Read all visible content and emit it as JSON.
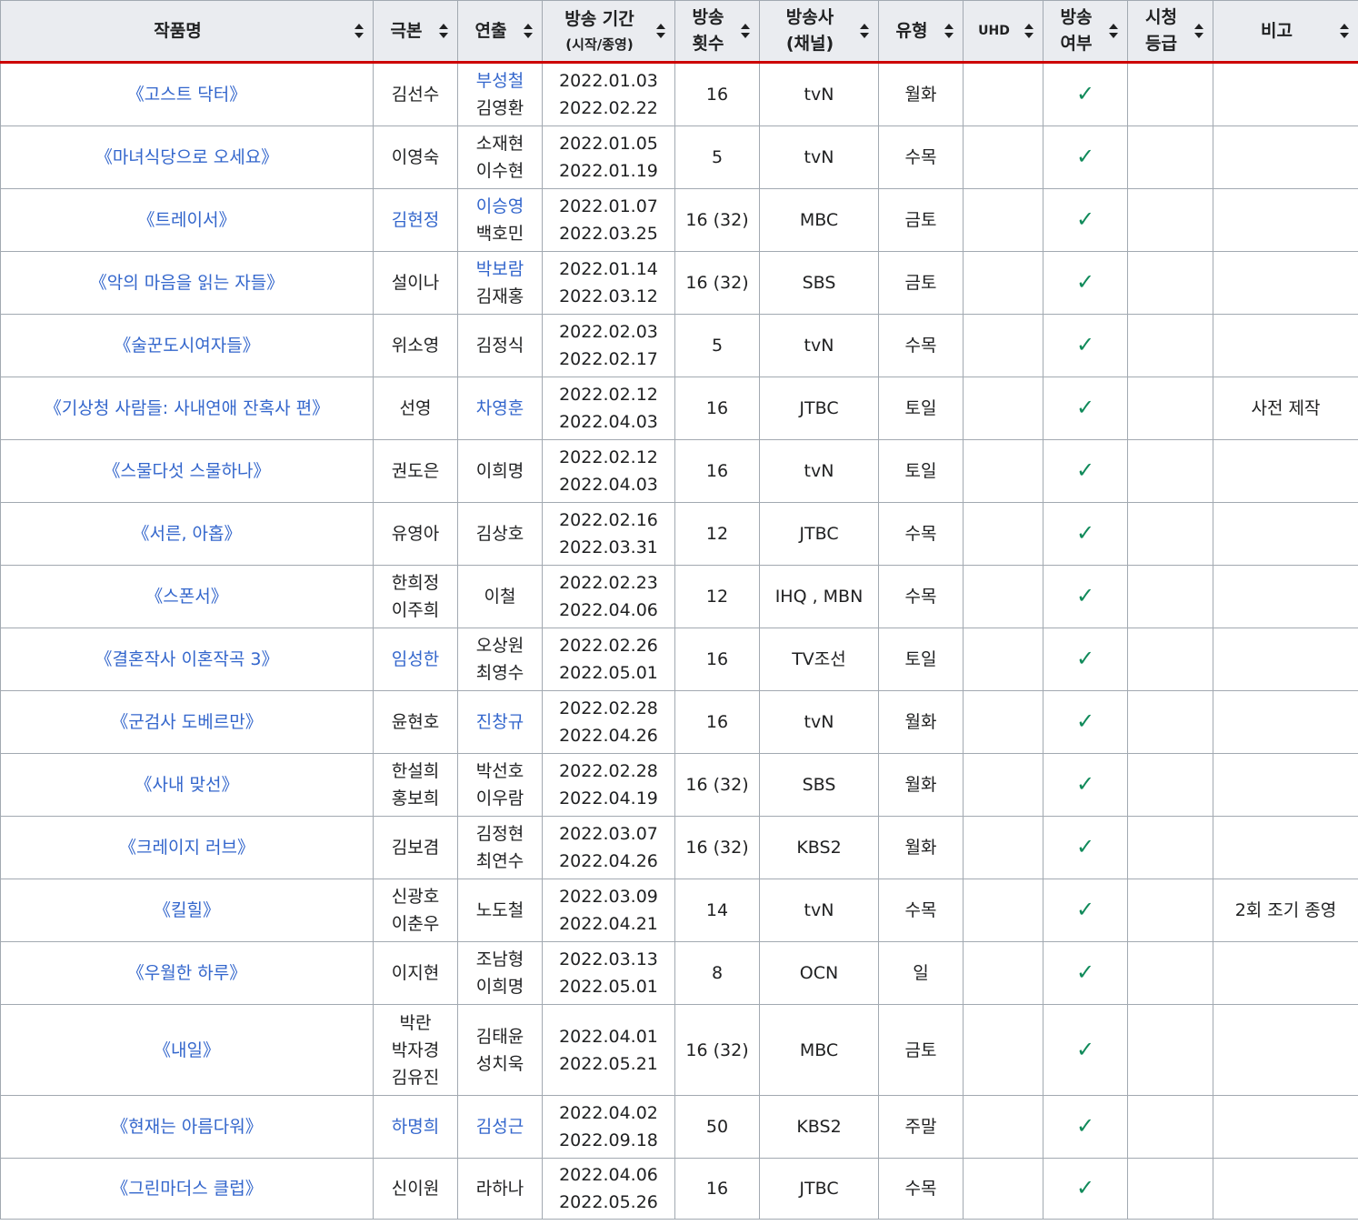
{
  "headers": [
    {
      "key": "title",
      "lines": [
        "작품명"
      ]
    },
    {
      "key": "writer",
      "lines": [
        "극본"
      ]
    },
    {
      "key": "director",
      "lines": [
        "연출"
      ]
    },
    {
      "key": "period",
      "lines": [
        "방송 기간"
      ],
      "sub": "(시작/종영)"
    },
    {
      "key": "episodes",
      "lines": [
        "방송",
        "횟수"
      ]
    },
    {
      "key": "network",
      "lines": [
        "방송사",
        "(채널)"
      ]
    },
    {
      "key": "type",
      "lines": [
        "유형"
      ]
    },
    {
      "key": "uhd",
      "lines": [
        "UHD"
      ]
    },
    {
      "key": "aired",
      "lines": [
        "방송",
        "여부"
      ]
    },
    {
      "key": "rating",
      "lines": [
        "시청",
        "등급"
      ]
    },
    {
      "key": "note",
      "lines": [
        "비고"
      ]
    }
  ],
  "check_mark": "✓",
  "accent_colors": {
    "link": "#3366cc",
    "check": "#108a5a",
    "header_rule": "#cc0000",
    "header_bg": "#eaecf0",
    "border": "#a2a9b1"
  },
  "rows": [
    {
      "title": "《고스트 닥터》",
      "writer": [
        {
          "t": "김선수",
          "link": false
        }
      ],
      "director": [
        {
          "t": "부성철",
          "link": true
        },
        {
          "t": "김영환",
          "link": false
        }
      ],
      "start": "2022.01.03",
      "end": "2022.02.22",
      "episodes": "16",
      "network": "tvN",
      "type": "월화",
      "uhd": "",
      "aired": true,
      "rating": "",
      "note": ""
    },
    {
      "title": "《마녀식당으로 오세요》",
      "writer": [
        {
          "t": "이영숙",
          "link": false
        }
      ],
      "director": [
        {
          "t": "소재현",
          "link": false
        },
        {
          "t": "이수현",
          "link": false
        }
      ],
      "start": "2022.01.05",
      "end": "2022.01.19",
      "episodes": "5",
      "network": "tvN",
      "type": "수목",
      "uhd": "",
      "aired": true,
      "rating": "",
      "note": ""
    },
    {
      "title": "《트레이서》",
      "writer": [
        {
          "t": "김현정",
          "link": true
        }
      ],
      "director": [
        {
          "t": "이승영",
          "link": true
        },
        {
          "t": "백호민",
          "link": false
        }
      ],
      "start": "2022.01.07",
      "end": "2022.03.25",
      "episodes": "16 (32)",
      "network": "MBC",
      "type": "금토",
      "uhd": "",
      "aired": true,
      "rating": "",
      "note": ""
    },
    {
      "title": "《악의 마음을 읽는 자들》",
      "writer": [
        {
          "t": "설이나",
          "link": false
        }
      ],
      "director": [
        {
          "t": "박보람",
          "link": true
        },
        {
          "t": "김재홍",
          "link": false
        }
      ],
      "start": "2022.01.14",
      "end": "2022.03.12",
      "episodes": "16 (32)",
      "network": "SBS",
      "type": "금토",
      "uhd": "",
      "aired": true,
      "rating": "",
      "note": ""
    },
    {
      "title": "《술꾼도시여자들》",
      "writer": [
        {
          "t": "위소영",
          "link": false
        }
      ],
      "director": [
        {
          "t": "김정식",
          "link": false
        }
      ],
      "start": "2022.02.03",
      "end": "2022.02.17",
      "episodes": "5",
      "network": "tvN",
      "type": "수목",
      "uhd": "",
      "aired": true,
      "rating": "",
      "note": ""
    },
    {
      "title": "《기상청 사람들: 사내연애 잔혹사 편》",
      "writer": [
        {
          "t": "선영",
          "link": false
        }
      ],
      "director": [
        {
          "t": "차영훈",
          "link": true
        }
      ],
      "start": "2022.02.12",
      "end": "2022.04.03",
      "episodes": "16",
      "network": "JTBC",
      "type": "토일",
      "uhd": "",
      "aired": true,
      "rating": "",
      "note": "사전 제작"
    },
    {
      "title": "《스물다섯 스물하나》",
      "writer": [
        {
          "t": "권도은",
          "link": false
        }
      ],
      "director": [
        {
          "t": "이희명",
          "link": false
        }
      ],
      "start": "2022.02.12",
      "end": "2022.04.03",
      "episodes": "16",
      "network": "tvN",
      "type": "토일",
      "uhd": "",
      "aired": true,
      "rating": "",
      "note": ""
    },
    {
      "title": "《서른, 아홉》",
      "writer": [
        {
          "t": "유영아",
          "link": false
        }
      ],
      "director": [
        {
          "t": "김상호",
          "link": false
        }
      ],
      "start": "2022.02.16",
      "end": "2022.03.31",
      "episodes": "12",
      "network": "JTBC",
      "type": "수목",
      "uhd": "",
      "aired": true,
      "rating": "",
      "note": ""
    },
    {
      "title": "《스폰서》",
      "writer": [
        {
          "t": "한희정",
          "link": false
        },
        {
          "t": "이주희",
          "link": false
        }
      ],
      "director": [
        {
          "t": "이철",
          "link": false
        }
      ],
      "start": "2022.02.23",
      "end": "2022.04.06",
      "episodes": "12",
      "network": "IHQ , MBN",
      "type": "수목",
      "uhd": "",
      "aired": true,
      "rating": "",
      "note": ""
    },
    {
      "title": "《결혼작사 이혼작곡 3》",
      "writer": [
        {
          "t": "임성한",
          "link": true
        }
      ],
      "director": [
        {
          "t": "오상원",
          "link": false
        },
        {
          "t": "최영수",
          "link": false
        }
      ],
      "start": "2022.02.26",
      "end": "2022.05.01",
      "episodes": "16",
      "network": "TV조선",
      "type": "토일",
      "uhd": "",
      "aired": true,
      "rating": "",
      "note": ""
    },
    {
      "title": "《군검사 도베르만》",
      "writer": [
        {
          "t": "윤현호",
          "link": false
        }
      ],
      "director": [
        {
          "t": "진창규",
          "link": true
        }
      ],
      "start": "2022.02.28",
      "end": "2022.04.26",
      "episodes": "16",
      "network": "tvN",
      "type": "월화",
      "uhd": "",
      "aired": true,
      "rating": "",
      "note": ""
    },
    {
      "title": "《사내 맞선》",
      "writer": [
        {
          "t": "한설희",
          "link": false
        },
        {
          "t": "홍보희",
          "link": false
        }
      ],
      "director": [
        {
          "t": "박선호",
          "link": false
        },
        {
          "t": "이우람",
          "link": false
        }
      ],
      "start": "2022.02.28",
      "end": "2022.04.19",
      "episodes": "16 (32)",
      "network": "SBS",
      "type": "월화",
      "uhd": "",
      "aired": true,
      "rating": "",
      "note": ""
    },
    {
      "title": "《크레이지 러브》",
      "writer": [
        {
          "t": "김보겸",
          "link": false
        }
      ],
      "director": [
        {
          "t": "김정현",
          "link": false
        },
        {
          "t": "최연수",
          "link": false
        }
      ],
      "start": "2022.03.07",
      "end": "2022.04.26",
      "episodes": "16 (32)",
      "network": "KBS2",
      "type": "월화",
      "uhd": "",
      "aired": true,
      "rating": "",
      "note": ""
    },
    {
      "title": "《킬힐》",
      "writer": [
        {
          "t": "신광호",
          "link": false
        },
        {
          "t": "이춘우",
          "link": false
        }
      ],
      "director": [
        {
          "t": "노도철",
          "link": false
        }
      ],
      "start": "2022.03.09",
      "end": "2022.04.21",
      "episodes": "14",
      "network": "tvN",
      "type": "수목",
      "uhd": "",
      "aired": true,
      "rating": "",
      "note": "2회 조기 종영"
    },
    {
      "title": "《우월한 하루》",
      "writer": [
        {
          "t": "이지현",
          "link": false
        }
      ],
      "director": [
        {
          "t": "조남형",
          "link": false
        },
        {
          "t": "이희명",
          "link": false
        }
      ],
      "start": "2022.03.13",
      "end": "2022.05.01",
      "episodes": "8",
      "network": "OCN",
      "type": "일",
      "uhd": "",
      "aired": true,
      "rating": "",
      "note": ""
    },
    {
      "title": "《내일》",
      "writer": [
        {
          "t": "박란",
          "link": false
        },
        {
          "t": "박자경",
          "link": false
        },
        {
          "t": "김유진",
          "link": false
        }
      ],
      "director": [
        {
          "t": "김태윤",
          "link": false
        },
        {
          "t": "성치욱",
          "link": false
        }
      ],
      "start": "2022.04.01",
      "end": "2022.05.21",
      "episodes": "16 (32)",
      "network": "MBC",
      "type": "금토",
      "uhd": "",
      "aired": true,
      "rating": "",
      "note": ""
    },
    {
      "title": "《현재는 아름다워》",
      "writer": [
        {
          "t": "하명희",
          "link": true
        }
      ],
      "director": [
        {
          "t": "김성근",
          "link": true
        }
      ],
      "start": "2022.04.02",
      "end": "2022.09.18",
      "episodes": "50",
      "network": "KBS2",
      "type": "주말",
      "uhd": "",
      "aired": true,
      "rating": "",
      "note": ""
    },
    {
      "title": "《그린마더스 클럽》",
      "writer": [
        {
          "t": "신이원",
          "link": false
        }
      ],
      "director": [
        {
          "t": "라하나",
          "link": false
        }
      ],
      "start": "2022.04.06",
      "end": "2022.05.26",
      "episodes": "16",
      "network": "JTBC",
      "type": "수목",
      "uhd": "",
      "aired": true,
      "rating": "",
      "note": ""
    }
  ]
}
